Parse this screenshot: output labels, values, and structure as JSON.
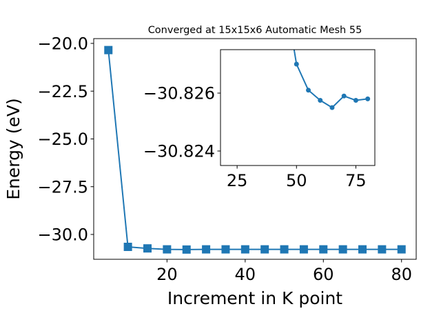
{
  "chart_data": [
    {
      "type": "line",
      "title": "Converged at 15x15x6 Automatic Mesh 55",
      "xlabel": "Increment in K point",
      "ylabel": "Energy (eV)",
      "xlim": [
        1.25,
        83.75
      ],
      "ylim": [
        -31.3,
        -19.75
      ],
      "xticks": [
        20,
        40,
        60,
        80
      ],
      "xtick_labels": [
        "20",
        "40",
        "60",
        "80"
      ],
      "yticks": [
        -20.0,
        -22.5,
        -25.0,
        -27.5,
        -30.0
      ],
      "ytick_labels": [
        "−20.0",
        "−22.5",
        "−25.0",
        "−27.5",
        "−30.0"
      ],
      "marker": "square",
      "color": "#1f77b4",
      "grid": false,
      "x": [
        5,
        10,
        15,
        20,
        25,
        30,
        35,
        40,
        45,
        50,
        55,
        60,
        65,
        70,
        75,
        80
      ],
      "y": [
        -20.35,
        -30.65,
        -30.73,
        -30.78,
        -30.79,
        -30.78,
        -30.78,
        -30.78,
        -30.78,
        -30.78,
        -30.78,
        -30.78,
        -30.78,
        -30.78,
        -30.78,
        -30.78
      ]
    },
    {
      "type": "line",
      "inset": true,
      "xlim": [
        18,
        83
      ],
      "ylim": [
        -30.8235,
        -30.8275
      ],
      "xticks": [
        25,
        50,
        75
      ],
      "xtick_labels": [
        "25",
        "50",
        "75"
      ],
      "yticks": [
        -30.826,
        -30.824
      ],
      "ytick_labels": [
        "−30.826",
        "−30.824"
      ],
      "marker": "circle",
      "color": "#1f77b4",
      "grid": false,
      "x": [
        45,
        50,
        55,
        60,
        65,
        70,
        75,
        80
      ],
      "y": [
        -30.8295,
        -30.827,
        -30.8261,
        -30.82575,
        -30.8255,
        -30.8259,
        -30.82575,
        -30.8258
      ]
    }
  ]
}
